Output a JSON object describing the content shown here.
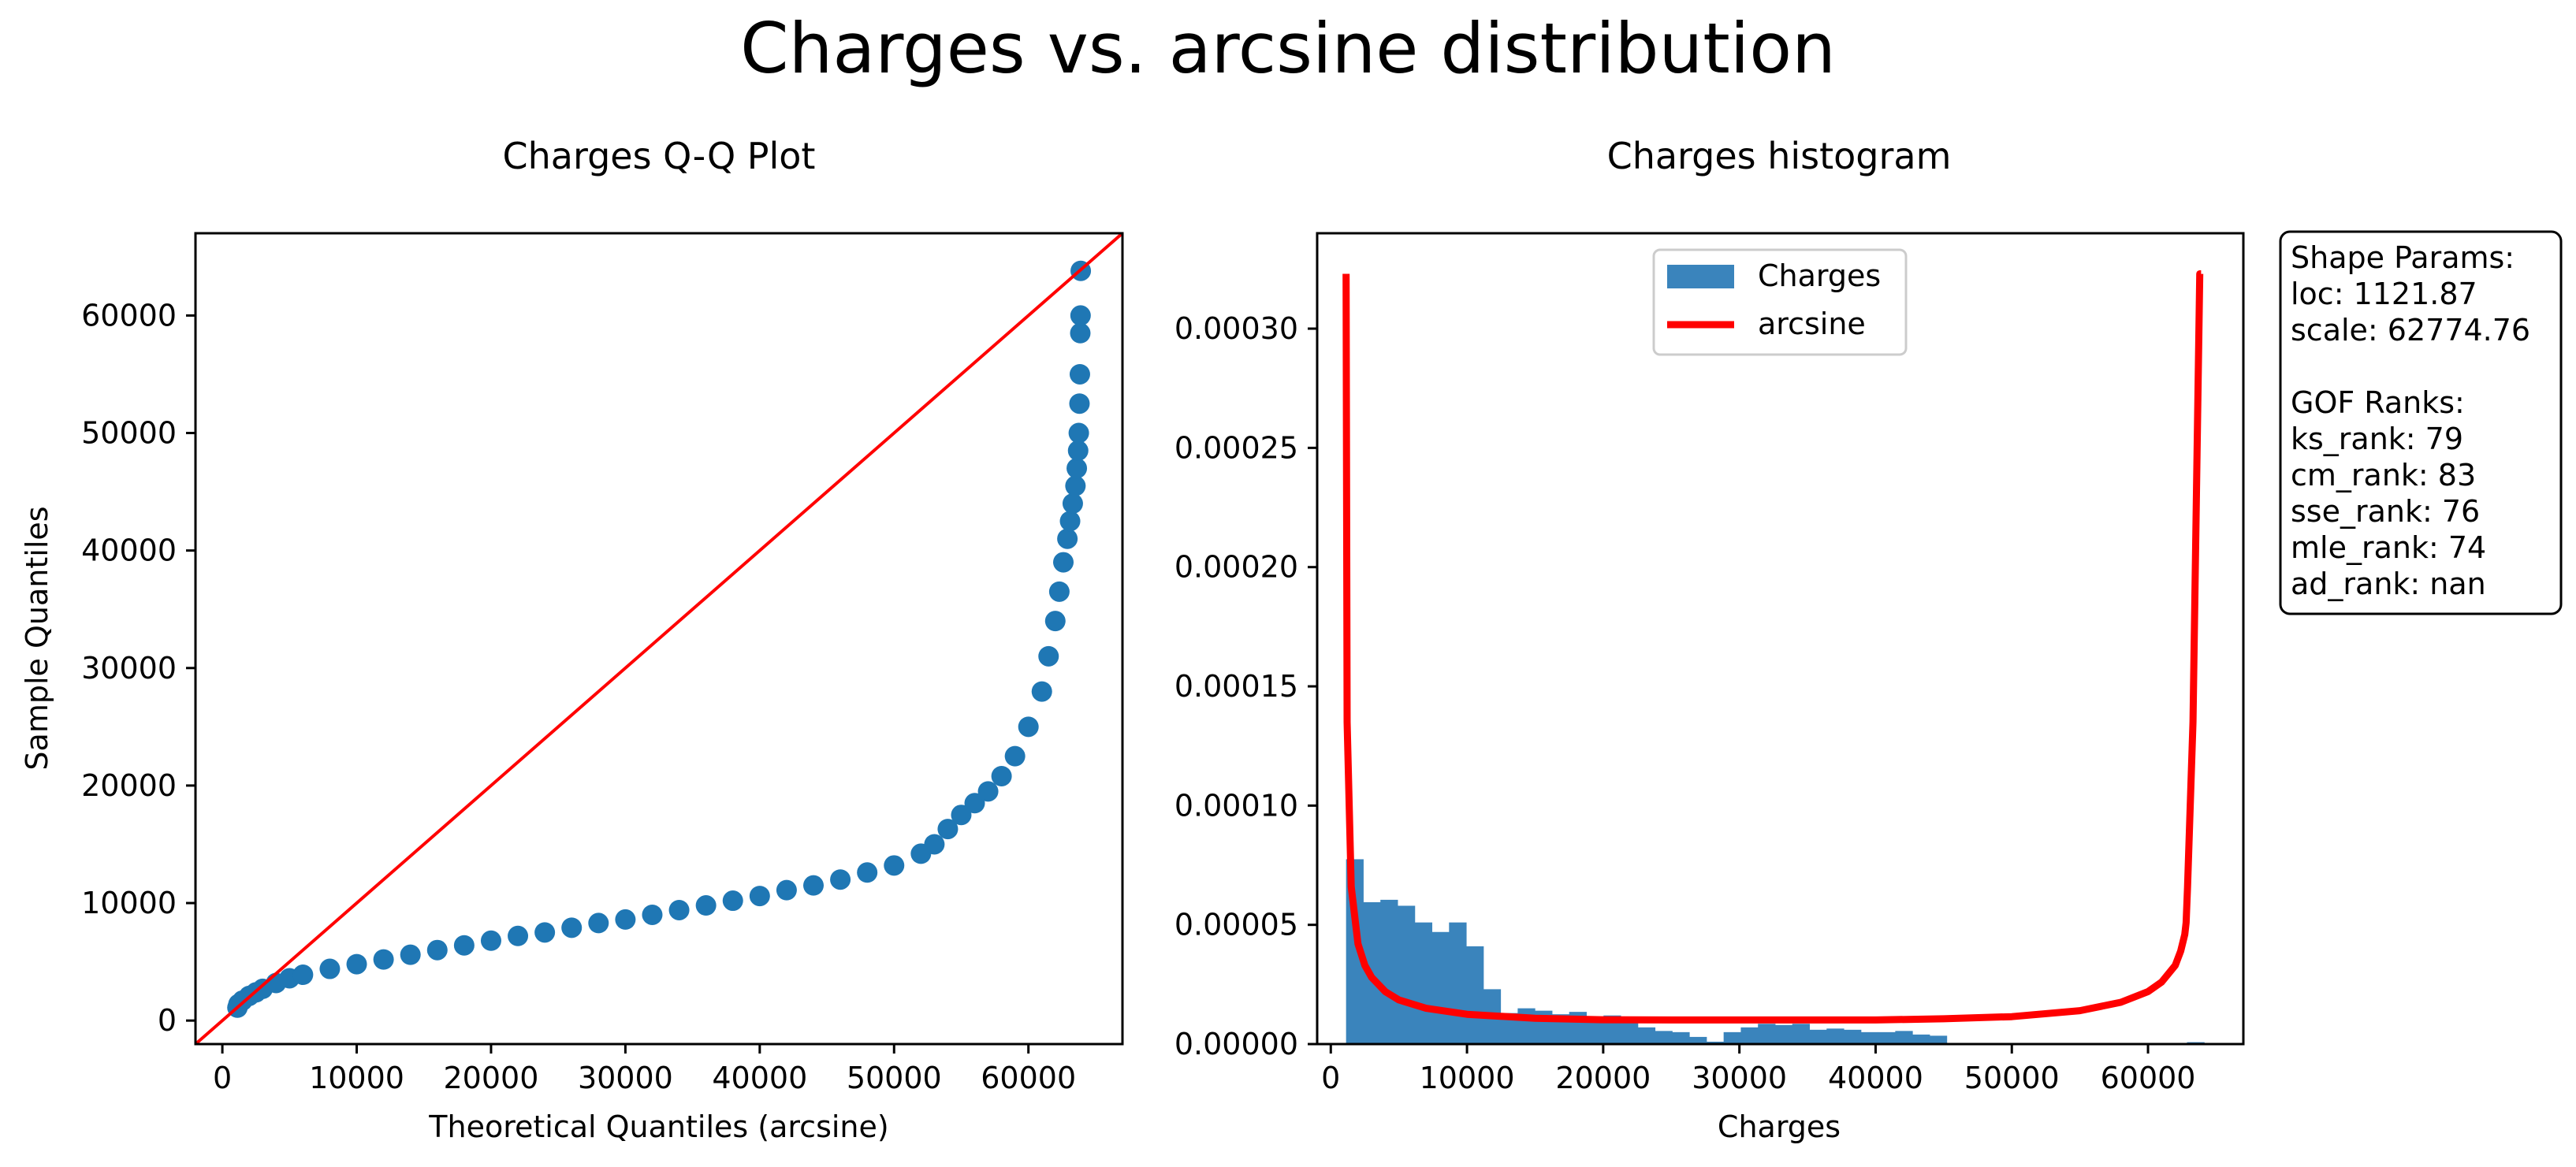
{
  "suptitle": "Charges vs. arcsine distribution",
  "colors": {
    "points": "#1f77b4",
    "bars": "#3a84bc",
    "fit_line": "#ff0000",
    "axes": "#000000"
  },
  "info_box": {
    "lines": [
      "Shape Params:",
      "loc: 1121.87",
      "scale: 62774.76",
      "",
      "GOF Ranks:",
      "ks_rank: 79",
      "cm_rank: 83",
      "sse_rank: 76",
      "mle_rank: 74",
      "ad_rank: nan"
    ]
  },
  "chart_data": [
    {
      "type": "scatter",
      "title": "Charges Q-Q Plot",
      "xlabel": "Theoretical Quantiles (arcsine)",
      "ylabel": "Sample Quantiles",
      "xlim": [
        -2000,
        67000
      ],
      "ylim": [
        -2000,
        67000
      ],
      "xticks": [
        0,
        10000,
        20000,
        30000,
        40000,
        50000,
        60000
      ],
      "yticks": [
        0,
        10000,
        20000,
        30000,
        40000,
        50000,
        60000
      ],
      "grid": false,
      "reference_line": {
        "color": "#ff0000",
        "from": [
          -2000,
          -2000
        ],
        "to": [
          67000,
          67000
        ]
      },
      "points": {
        "theoretical": [
          1121.87,
          1200,
          1500,
          2000,
          2500,
          3000,
          4000,
          5000,
          6000,
          8000,
          10000,
          12000,
          14000,
          16000,
          18000,
          20000,
          22000,
          24000,
          26000,
          28000,
          30000,
          32000,
          34000,
          36000,
          38000,
          40000,
          42000,
          44000,
          46000,
          48000,
          50000,
          52000,
          53000,
          54000,
          55000,
          56000,
          57000,
          58000,
          59000,
          60000,
          61000,
          61500,
          62000,
          62300,
          62600,
          62900,
          63100,
          63300,
          63500,
          63600,
          63700,
          63750,
          63800,
          63830,
          63860,
          63880,
          63895
        ],
        "sample": [
          1100,
          1400,
          1700,
          2100,
          2400,
          2700,
          3200,
          3600,
          3900,
          4400,
          4800,
          5200,
          5600,
          6000,
          6400,
          6800,
          7200,
          7500,
          7900,
          8300,
          8600,
          9000,
          9400,
          9800,
          10200,
          10600,
          11100,
          11500,
          12000,
          12600,
          13200,
          14200,
          15000,
          16300,
          17500,
          18500,
          19500,
          20800,
          22500,
          25000,
          28000,
          31000,
          34000,
          36500,
          39000,
          41000,
          42500,
          44000,
          45500,
          47000,
          48500,
          50000,
          52500,
          55000,
          58500,
          60000,
          63800
        ]
      }
    },
    {
      "type": "bar",
      "title": "Charges histogram",
      "xlabel": "Charges",
      "ylabel": "",
      "xlim": [
        -1000,
        67000
      ],
      "ylim": [
        0,
        0.00034
      ],
      "xticks": [
        0,
        10000,
        20000,
        30000,
        40000,
        50000,
        60000
      ],
      "yticks": [
        0,
        5e-05,
        0.0001,
        0.00015,
        0.0002,
        0.00025,
        0.0003
      ],
      "ytick_labels": [
        "0.00000",
        "0.00005",
        "0.00010",
        "0.00015",
        "0.00020",
        "0.00025",
        "0.00030"
      ],
      "grid": false,
      "legend": {
        "position": "upper center",
        "entries": [
          "Charges",
          "arcsine"
        ]
      },
      "histogram": {
        "name": "Charges",
        "bin_width": 1260,
        "bin_start": 1121.87,
        "values": [
          7.75e-05,
          5.95e-05,
          6.05e-05,
          5.8e-05,
          5.1e-05,
          4.7e-05,
          5.1e-05,
          4.1e-05,
          2.3e-05,
          1.3e-05,
          1.5e-05,
          1.4e-05,
          1.25e-05,
          1.35e-05,
          1.1e-05,
          1.2e-05,
          9.5e-06,
          7e-06,
          5.5e-06,
          5e-06,
          3e-06,
          1e-06,
          5e-06,
          7e-06,
          8.5e-06,
          8e-06,
          8.5e-06,
          6e-06,
          6.5e-06,
          6e-06,
          5e-06,
          5e-06,
          5.5e-06,
          4e-06,
          3.5e-06,
          0,
          0,
          0,
          0,
          0,
          0,
          0,
          0,
          0,
          0,
          0,
          0,
          0,
          0,
          8e-07
        ]
      },
      "fit_curve": {
        "name": "arcsine",
        "color": "#ff0000",
        "x": [
          1121.87,
          1200,
          1500,
          2000,
          2500,
          3000,
          4000,
          5000,
          7000,
          10000,
          15000,
          20000,
          25000,
          30000,
          32511,
          35000,
          40000,
          45000,
          50000,
          55000,
          58000,
          60000,
          61000,
          62000,
          62400,
          62700,
          62800,
          62900,
          63300,
          63800,
          63896.63
        ],
        "y": [
          0.000323,
          0.000135,
          6.6e-05,
          4.2e-05,
          3.3e-05,
          2.8e-05,
          2.2e-05,
          1.85e-05,
          1.5e-05,
          1.25e-05,
          1.08e-05,
          1.02e-05,
          1.01e-05,
          1.01e-05,
          1.01e-05,
          1.01e-05,
          1.01e-05,
          1.06e-05,
          1.15e-05,
          1.4e-05,
          1.75e-05,
          2.2e-05,
          2.6e-05,
          3.3e-05,
          3.9e-05,
          4.6e-05,
          5.1e-05,
          6.6e-05,
          0.000135,
          0.000323,
          0.000323
        ]
      }
    }
  ]
}
